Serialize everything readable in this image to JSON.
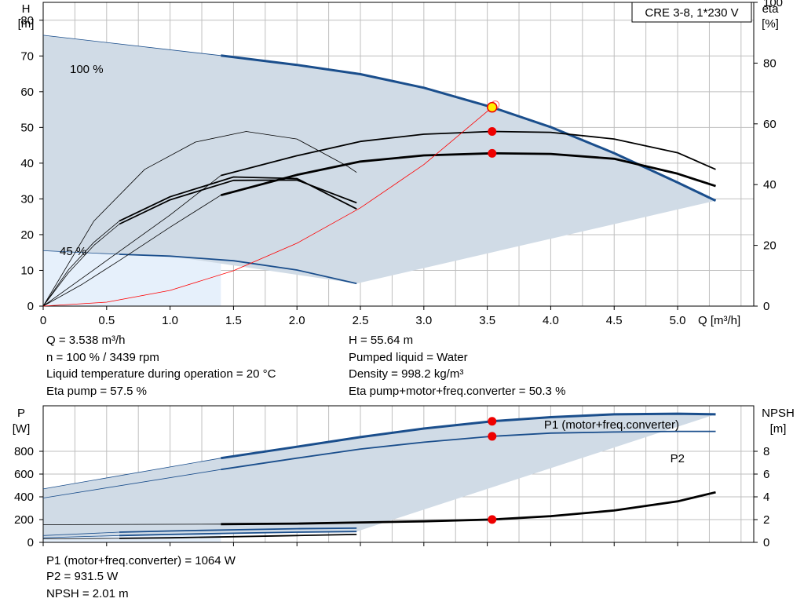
{
  "chart_data": [
    {
      "type": "line",
      "title": "CRE 3-8, 1*230 V",
      "y_left_label": [
        "H",
        "[m]"
      ],
      "y_right_label": [
        "eta",
        "[%]"
      ],
      "xlabel": "Q [m³/h]",
      "xlim": [
        0,
        5.6
      ],
      "ylim": [
        0,
        85
      ],
      "y_right_lim": [
        0,
        100
      ],
      "x_ticks": [
        "0",
        "0.5",
        "1.0",
        "1.5",
        "2.0",
        "2.5",
        "3.0",
        "3.5",
        "4.0",
        "4.5",
        "5.0"
      ],
      "x_tick_values": [
        0,
        0.5,
        1.0,
        1.5,
        2.0,
        2.5,
        3.0,
        3.5,
        4.0,
        4.5,
        5.0
      ],
      "y_ticks": [
        0,
        10,
        20,
        30,
        40,
        50,
        60,
        70,
        80
      ],
      "y_right_ticks": [
        0,
        20,
        40,
        60,
        80,
        100
      ],
      "speed_labels": [
        "100 %",
        "45 %"
      ],
      "grid": true,
      "series": [
        {
          "role": "H-max",
          "width": 3,
          "color": "#1a4e8c",
          "x": [
            1.4,
            2.0,
            2.5,
            3.0,
            3.538,
            4.0,
            4.5,
            5.0,
            5.3
          ],
          "y": [
            70.1,
            67.5,
            64.9,
            61.1,
            55.64,
            50.1,
            42.8,
            34.6,
            29.5
          ]
        },
        {
          "role": "H-max-extension",
          "width": 0.8,
          "color": "#1a4e8c",
          "x": [
            0,
            1.4
          ],
          "y": [
            75.8,
            70.1
          ]
        },
        {
          "role": "H-min",
          "width": 1.8,
          "color": "#1a4e8c",
          "x": [
            0.6,
            1.0,
            1.5,
            2.0,
            2.47
          ],
          "y": [
            14.5,
            14.0,
            12.7,
            10.1,
            6.3
          ]
        },
        {
          "role": "H-min-extension",
          "width": 0.8,
          "color": "#1a4e8c",
          "x": [
            0,
            0.6
          ],
          "y": [
            15.5,
            14.5
          ]
        },
        {
          "role": "eta-pump",
          "width": 1.8,
          "color": "#000000",
          "axis": "right",
          "x": [
            1.4,
            2.0,
            2.5,
            3.0,
            3.538,
            4.0,
            4.5,
            5.0,
            5.3
          ],
          "y": [
            43,
            49.5,
            54.2,
            56.6,
            57.5,
            57.2,
            55,
            50.5,
            45
          ]
        },
        {
          "role": "eta-total",
          "width": 2.8,
          "color": "#000000",
          "axis": "right",
          "x": [
            1.4,
            2.0,
            2.5,
            3.0,
            3.538,
            4.0,
            4.5,
            5.0,
            5.3
          ],
          "y": [
            36.5,
            43.2,
            47.6,
            49.6,
            50.3,
            50.1,
            48.5,
            43.6,
            39.5
          ]
        },
        {
          "role": "eta-pump-min",
          "width": 1.8,
          "color": "#000000",
          "axis": "right",
          "x": [
            0.6,
            1.0,
            1.5,
            2.0,
            2.47
          ],
          "y": [
            28,
            36,
            42.5,
            42,
            32
          ]
        },
        {
          "role": "eta-total-min",
          "width": 1.8,
          "color": "#000000",
          "axis": "right",
          "x": [
            0.6,
            1.0,
            1.5,
            2.0,
            2.47
          ],
          "y": [
            27,
            35,
            41.4,
            41.5,
            34
          ]
        },
        {
          "role": "eta-pump-min-ext",
          "width": 0.8,
          "color": "#000000",
          "axis": "right",
          "x": [
            0,
            0.2,
            0.4,
            0.6
          ],
          "y": [
            0,
            12,
            21,
            28
          ]
        },
        {
          "role": "eta-total-min-ext",
          "width": 0.8,
          "color": "#000000",
          "axis": "right",
          "x": [
            0,
            0.2,
            0.4,
            0.6
          ],
          "y": [
            0,
            11,
            20,
            27
          ]
        },
        {
          "role": "eta-pump-max-ext",
          "width": 0.8,
          "color": "#000000",
          "axis": "right",
          "x": [
            0,
            0.3,
            0.6,
            1.0,
            1.4
          ],
          "y": [
            0,
            9,
            18,
            30,
            43
          ]
        },
        {
          "role": "eta-total-max-ext",
          "width": 0.8,
          "color": "#000000",
          "axis": "right",
          "x": [
            0,
            0.3,
            0.6,
            1.0,
            1.4
          ],
          "y": [
            0,
            7,
            15,
            26,
            36.5
          ]
        },
        {
          "role": "eta-100pct-speed-curve",
          "width": 0.8,
          "color": "#000000",
          "axis": "right",
          "x": [
            0,
            0.4,
            0.8,
            1.2,
            1.6,
            2.0,
            2.4,
            2.47
          ],
          "y": [
            0,
            28,
            45,
            54,
            57.5,
            55,
            46,
            44
          ]
        },
        {
          "role": "system-curve",
          "width": 0.8,
          "color": "#ff0000",
          "x": [
            0,
            0.5,
            1.0,
            1.5,
            2.0,
            2.5,
            3.0,
            3.538
          ],
          "y": [
            0,
            1.1,
            4.4,
            9.9,
            17.6,
            27.5,
            39.6,
            55.64
          ]
        }
      ],
      "duty_point": {
        "x": 3.538,
        "y": 55.64
      },
      "eta_points": [
        {
          "x": 3.538,
          "y": 57.5
        },
        {
          "x": 3.538,
          "y": 50.3
        }
      ],
      "area_max_envelope": {
        "x": [
          0,
          1.4,
          2.0,
          2.5,
          3.0,
          3.538,
          4.0,
          4.5,
          5.0,
          5.3
        ],
        "y": [
          75.8,
          70.1,
          67.5,
          64.9,
          61.1,
          55.64,
          50.1,
          42.8,
          34.6,
          29.5
        ]
      },
      "area_min_envelope": {
        "x": [
          5.3,
          2.47,
          1.0,
          0.6,
          0
        ],
        "y": [
          29.5,
          6.3,
          14.0,
          14.5,
          15.5
        ]
      }
    },
    {
      "type": "line",
      "y_left_label": [
        "P",
        "[W]"
      ],
      "y_right_label": [
        "NPSH",
        "[m]"
      ],
      "xlim": [
        0,
        5.6
      ],
      "ylim": [
        0,
        1200
      ],
      "y_right_lim": [
        0,
        12
      ],
      "y_ticks": [
        0,
        200,
        400,
        600,
        800
      ],
      "y_right_ticks": [
        0,
        2,
        4,
        6,
        8
      ],
      "grid": true,
      "series": [
        {
          "name": "P1 (motor+freq.converter)",
          "width": 3,
          "color": "#1a4e8c",
          "x": [
            1.4,
            2.0,
            2.5,
            3.0,
            3.538,
            4.0,
            4.5,
            5.0,
            5.3
          ],
          "y": [
            740,
            840,
            925,
            1000,
            1064,
            1100,
            1125,
            1130,
            1125
          ]
        },
        {
          "name": "P2",
          "width": 1.8,
          "color": "#1a4e8c",
          "x": [
            1.4,
            2.0,
            2.5,
            3.0,
            3.538,
            4.0,
            4.5,
            5.0,
            5.3
          ],
          "y": [
            640,
            740,
            820,
            880,
            931.5,
            960,
            970,
            975,
            975
          ]
        },
        {
          "role": "P1-ext",
          "width": 0.8,
          "color": "#1a4e8c",
          "x": [
            0,
            1.4
          ],
          "y": [
            470,
            740
          ]
        },
        {
          "role": "P2-ext",
          "width": 0.8,
          "color": "#1a4e8c",
          "x": [
            0,
            1.4
          ],
          "y": [
            390,
            640
          ]
        },
        {
          "role": "P1-min",
          "width": 1.8,
          "color": "#1a4e8c",
          "x": [
            0.6,
            1.0,
            1.5,
            2.0,
            2.47
          ],
          "y": [
            90,
            100,
            110,
            120,
            125
          ]
        },
        {
          "role": "P2-min",
          "width": 1.8,
          "color": "#1a4e8c",
          "x": [
            0.6,
            1.0,
            1.5,
            2.0,
            2.47
          ],
          "y": [
            60,
            70,
            80,
            90,
            95
          ]
        },
        {
          "role": "P1-min-ext",
          "width": 0.8,
          "color": "#1a4e8c",
          "x": [
            0,
            0.6
          ],
          "y": [
            60,
            90
          ]
        },
        {
          "role": "P2-min-ext",
          "width": 0.8,
          "color": "#1a4e8c",
          "x": [
            0,
            0.6
          ],
          "y": [
            40,
            60
          ]
        },
        {
          "role": "NPSH",
          "width": 2.8,
          "color": "#000000",
          "axis": "right",
          "x": [
            1.4,
            2.0,
            2.5,
            3.0,
            3.538,
            4.0,
            4.5,
            5.0,
            5.3
          ],
          "y": [
            1.6,
            1.65,
            1.75,
            1.85,
            2.01,
            2.3,
            2.8,
            3.6,
            4.4
          ]
        },
        {
          "role": "NPSH-ext",
          "width": 0.8,
          "color": "#000000",
          "axis": "right",
          "x": [
            0,
            1.4
          ],
          "y": [
            1.55,
            1.6
          ]
        },
        {
          "role": "NPSH-min",
          "width": 1.8,
          "color": "#000000",
          "axis": "right",
          "x": [
            0.6,
            1.0,
            1.5,
            2.0,
            2.47
          ],
          "y": [
            0.35,
            0.4,
            0.5,
            0.6,
            0.7
          ]
        },
        {
          "role": "NPSH-min-ext",
          "width": 0.8,
          "color": "#000000",
          "axis": "right",
          "x": [
            0,
            0.6
          ],
          "y": [
            0.3,
            0.35
          ]
        }
      ],
      "points": [
        {
          "x": 3.538,
          "y": 1064,
          "axis": "left"
        },
        {
          "x": 3.538,
          "y": 931.5,
          "axis": "left"
        },
        {
          "x": 3.538,
          "y": 2.01,
          "axis": "right"
        }
      ],
      "area_max_envelope": {
        "x": [
          0,
          1.4,
          2.0,
          2.5,
          3.0,
          3.538,
          4.0,
          4.5,
          5.0,
          5.3
        ],
        "y": [
          470,
          740,
          840,
          925,
          1000,
          1064,
          1100,
          1125,
          1130,
          1125
        ]
      },
      "area_min_envelope": {
        "x": [
          5.3,
          2.47,
          0.6,
          0
        ],
        "y": [
          1125,
          95,
          60,
          40
        ]
      }
    }
  ],
  "info_top": {
    "q": "Q = 3.538 m³/h",
    "n": "n = 100 % / 3439 rpm",
    "temp": "Liquid temperature during operation = 20 °C",
    "eta_pump": "Eta pump = 57.5 %",
    "h": "H = 55.64 m",
    "liquid": "Pumped liquid = Water",
    "density": "Density = 998.2 kg/m³",
    "eta_total": "Eta pump+motor+freq.converter = 50.3 %"
  },
  "info_bottom": {
    "p1": "P1 (motor+freq.converter) = 1064 W",
    "p2": "P2 = 931.5 W",
    "npsh": "NPSH = 2.01 m"
  },
  "colors": {
    "curve_blue": "#1a4e8c",
    "area_fill": "#d0dbe6",
    "area_light": "#e6f0fb",
    "duty_point": "#ffee00",
    "point_red": "#ee0000",
    "grid": "#bfbfbf"
  }
}
